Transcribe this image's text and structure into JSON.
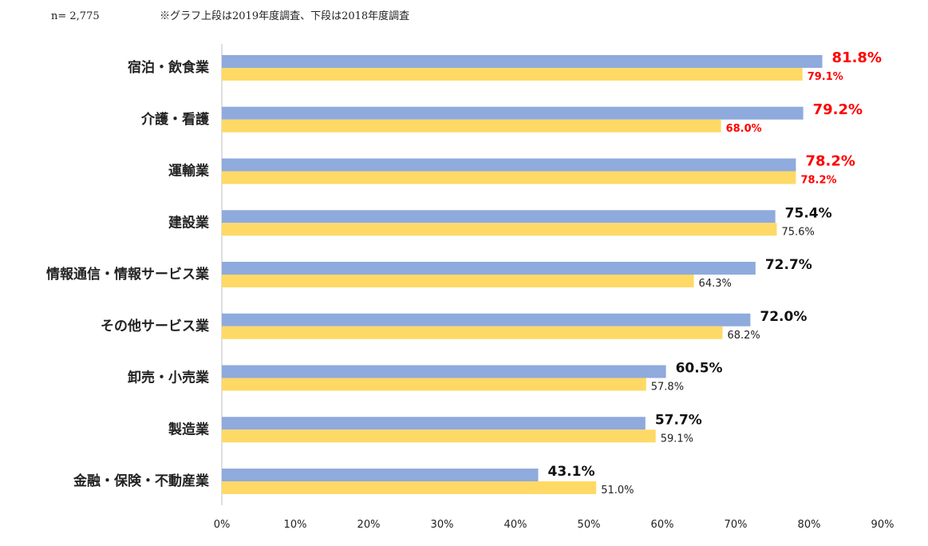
{
  "header": {
    "n_label": "n= 2,775",
    "note": "※グラフ上段は2019年度調査、下段は2018年度調査"
  },
  "chart_data": {
    "type": "bar",
    "orientation": "horizontal",
    "categories": [
      "宿泊・飲食業",
      "介護・看護",
      "運輸業",
      "建設業",
      "情報通信・情報サービス業",
      "その他サービス業",
      "卸売・小売業",
      "製造業",
      "金融・保険・不動産業"
    ],
    "series": [
      {
        "key": "y2019",
        "values": [
          81.8,
          79.2,
          78.2,
          75.4,
          72.7,
          72.0,
          60.5,
          57.7,
          43.1
        ],
        "color": "#8FAADC"
      },
      {
        "key": "y2018",
        "values": [
          79.1,
          68.0,
          78.2,
          75.6,
          64.3,
          68.2,
          57.8,
          59.1,
          51.0
        ],
        "color": "#FFD966"
      }
    ],
    "data_labels_2019": [
      "81.8%",
      "79.2%",
      "78.2%",
      "75.4%",
      "72.7%",
      "72.0%",
      "60.5%",
      "57.7%",
      "43.1%"
    ],
    "data_labels_2018": [
      "79.1%",
      "68.0%",
      "78.2%",
      "75.6%",
      "64.3%",
      "68.2%",
      "57.8%",
      "59.1%",
      "51.0%"
    ],
    "highlight_rows": [
      0,
      1,
      2
    ],
    "highlight_color": "#FF0000",
    "xlim": [
      0,
      90
    ],
    "xticks": [
      "0%",
      "10%",
      "20%",
      "30%",
      "40%",
      "50%",
      "60%",
      "70%",
      "80%",
      "90%"
    ],
    "grid": false
  }
}
